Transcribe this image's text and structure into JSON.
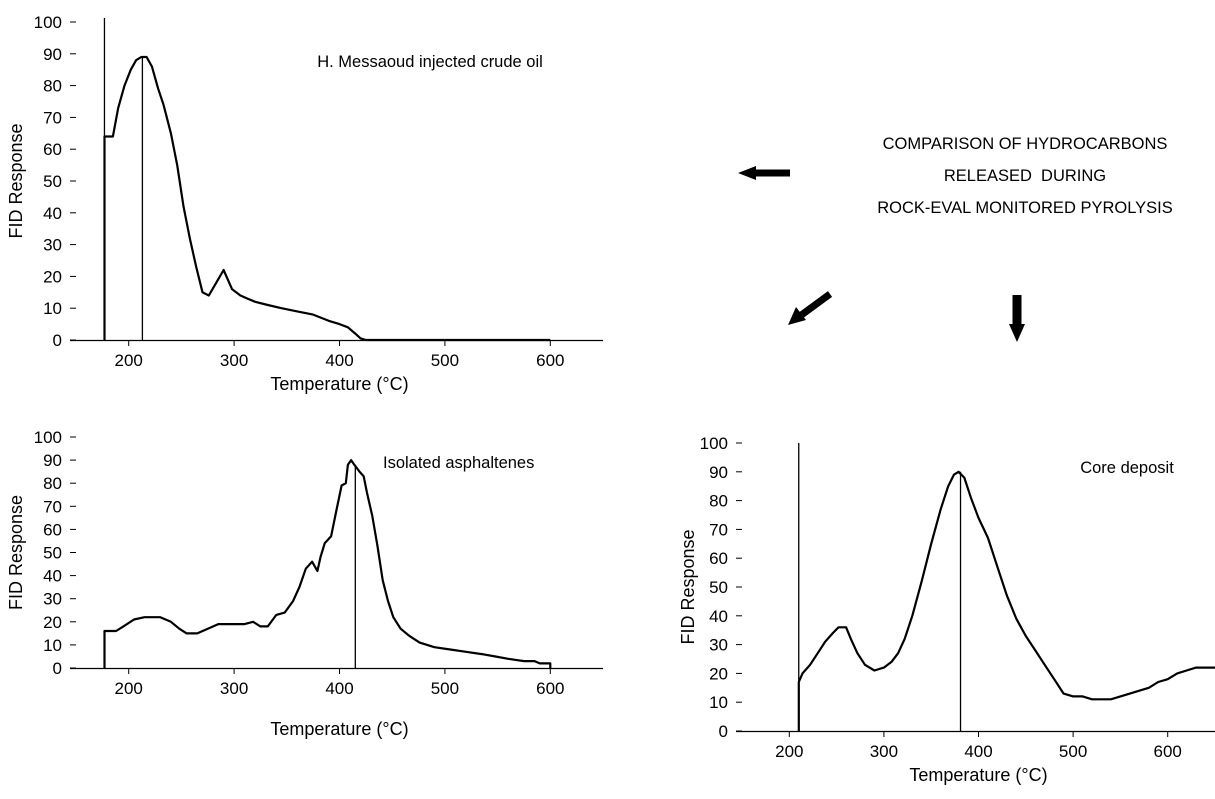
{
  "caption": {
    "lines": [
      "COMPARISON OF HYDROCARBONS",
      "RELEASED  DURING",
      "ROCK-EVAL MONITORED PYROLYSIS"
    ]
  },
  "chart_data": [
    {
      "type": "line",
      "annotation": "H. Messaoud injected crude oil",
      "xlabel": "Temperature (°C)",
      "ylabel": "FID Response",
      "xlim": [
        150,
        650
      ],
      "ylim": [
        0,
        100
      ],
      "xticks": [
        200,
        300,
        400,
        500,
        600
      ],
      "yticks": [
        0,
        10,
        20,
        30,
        40,
        50,
        60,
        70,
        80,
        90,
        100
      ],
      "start_x": 177,
      "peak_x": 213,
      "series": [
        {
          "values": [
            [
              177,
              0
            ],
            [
              177,
              64
            ],
            [
              185,
              64
            ],
            [
              190,
              73
            ],
            [
              196,
              80
            ],
            [
              202,
              85
            ],
            [
              207,
              88
            ],
            [
              212,
              89
            ],
            [
              217,
              89
            ],
            [
              222,
              86
            ],
            [
              228,
              79
            ],
            [
              233,
              74
            ],
            [
              240,
              65
            ],
            [
              246,
              55
            ],
            [
              252,
              42
            ],
            [
              258,
              32
            ],
            [
              264,
              23
            ],
            [
              270,
              15
            ],
            [
              276,
              14
            ],
            [
              283,
              18
            ],
            [
              290,
              22
            ],
            [
              298,
              16
            ],
            [
              306,
              14
            ],
            [
              313,
              13
            ],
            [
              320,
              12
            ],
            [
              332,
              11
            ],
            [
              345,
              10
            ],
            [
              360,
              9
            ],
            [
              375,
              8
            ],
            [
              390,
              6
            ],
            [
              400,
              5
            ],
            [
              408,
              4
            ],
            [
              415,
              2
            ],
            [
              420,
              0.5
            ],
            [
              425,
              0
            ],
            [
              600,
              0
            ]
          ]
        }
      ]
    },
    {
      "type": "line",
      "annotation": "Isolated asphaltenes",
      "xlabel": "Temperature (°C)",
      "ylabel": "FID Response",
      "xlim": [
        150,
        650
      ],
      "ylim": [
        0,
        100
      ],
      "xticks": [
        200,
        300,
        400,
        500,
        600
      ],
      "yticks": [
        0,
        10,
        20,
        30,
        40,
        50,
        60,
        70,
        80,
        90,
        100
      ],
      "start_x": 177,
      "peak_x": 415,
      "series": [
        {
          "values": [
            [
              177,
              0
            ],
            [
              177,
              16
            ],
            [
              188,
              16
            ],
            [
              195,
              18
            ],
            [
              205,
              21
            ],
            [
              215,
              22
            ],
            [
              230,
              22
            ],
            [
              240,
              20
            ],
            [
              248,
              17
            ],
            [
              255,
              15
            ],
            [
              265,
              15
            ],
            [
              275,
              17
            ],
            [
              285,
              19
            ],
            [
              300,
              19
            ],
            [
              310,
              19
            ],
            [
              318,
              20
            ],
            [
              325,
              18
            ],
            [
              332,
              18
            ],
            [
              340,
              23
            ],
            [
              348,
              24
            ],
            [
              356,
              29
            ],
            [
              362,
              35
            ],
            [
              368,
              43
            ],
            [
              374,
              46
            ],
            [
              379,
              42
            ],
            [
              382,
              48
            ],
            [
              386,
              54
            ],
            [
              392,
              57
            ],
            [
              397,
              68
            ],
            [
              402,
              79
            ],
            [
              406,
              80
            ],
            [
              408,
              88
            ],
            [
              411,
              90
            ],
            [
              414,
              88
            ],
            [
              419,
              85
            ],
            [
              423,
              83
            ],
            [
              426,
              76
            ],
            [
              431,
              66
            ],
            [
              436,
              53
            ],
            [
              441,
              38
            ],
            [
              446,
              29
            ],
            [
              451,
              22
            ],
            [
              458,
              17
            ],
            [
              466,
              14
            ],
            [
              476,
              11
            ],
            [
              490,
              9
            ],
            [
              505,
              8
            ],
            [
              520,
              7
            ],
            [
              535,
              6
            ],
            [
              548,
              5
            ],
            [
              560,
              4
            ],
            [
              575,
              3
            ],
            [
              585,
              3
            ],
            [
              590,
              2
            ],
            [
              600,
              2
            ],
            [
              600,
              0
            ]
          ]
        }
      ]
    },
    {
      "type": "line",
      "annotation": "Core deposit",
      "xlabel": "Temperature (°C)",
      "ylabel": "FID Response",
      "xlim": [
        150,
        650
      ],
      "ylim": [
        0,
        100
      ],
      "xticks": [
        200,
        300,
        400,
        500,
        600
      ],
      "yticks": [
        0,
        10,
        20,
        30,
        40,
        50,
        60,
        70,
        80,
        90,
        100
      ],
      "start_x": 210,
      "peak_x": 381,
      "series": [
        {
          "values": [
            [
              210,
              0
            ],
            [
              210,
              17
            ],
            [
              214,
              20
            ],
            [
              222,
              23
            ],
            [
              230,
              27
            ],
            [
              238,
              31
            ],
            [
              246,
              34
            ],
            [
              252,
              36
            ],
            [
              260,
              36
            ],
            [
              265,
              32
            ],
            [
              272,
              27
            ],
            [
              280,
              23
            ],
            [
              290,
              21
            ],
            [
              300,
              22
            ],
            [
              308,
              24
            ],
            [
              315,
              27
            ],
            [
              322,
              32
            ],
            [
              330,
              40
            ],
            [
              340,
              52
            ],
            [
              350,
              65
            ],
            [
              360,
              77
            ],
            [
              368,
              85
            ],
            [
              374,
              89
            ],
            [
              379,
              90
            ],
            [
              385,
              88
            ],
            [
              392,
              81
            ],
            [
              400,
              74
            ],
            [
              410,
              67
            ],
            [
              420,
              57
            ],
            [
              430,
              47
            ],
            [
              440,
              39
            ],
            [
              450,
              33
            ],
            [
              460,
              28
            ],
            [
              470,
              23
            ],
            [
              480,
              18
            ],
            [
              490,
              13
            ],
            [
              500,
              12
            ],
            [
              510,
              12
            ],
            [
              520,
              11
            ],
            [
              530,
              11
            ],
            [
              540,
              11
            ],
            [
              550,
              12
            ],
            [
              560,
              13
            ],
            [
              570,
              14
            ],
            [
              580,
              15
            ],
            [
              590,
              17
            ],
            [
              600,
              18
            ],
            [
              610,
              20
            ],
            [
              620,
              21
            ],
            [
              630,
              22
            ],
            [
              640,
              22
            ],
            [
              650,
              22
            ]
          ]
        }
      ]
    }
  ]
}
